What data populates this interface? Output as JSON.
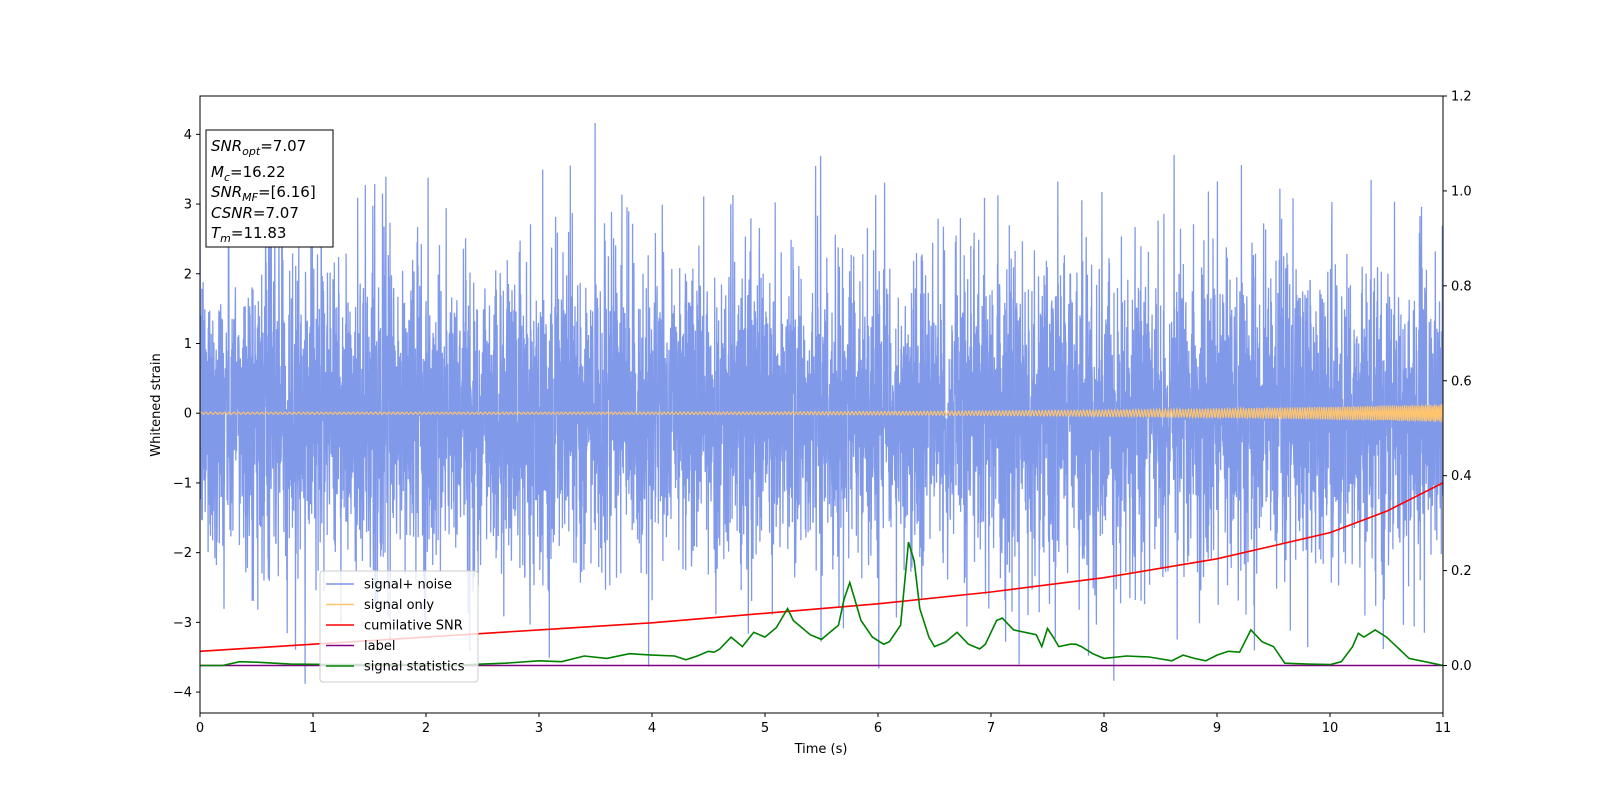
{
  "chart_data": {
    "type": "line",
    "xlabel": "Time (s)",
    "ylabel": "Whitened strain",
    "xlim": [
      0,
      11
    ],
    "ylim": [
      -4.3,
      4.55
    ],
    "y2lim": [
      -0.1,
      1.2
    ],
    "x_ticks": [
      "0",
      "1",
      "2",
      "3",
      "4",
      "5",
      "6",
      "7",
      "8",
      "9",
      "10",
      "11"
    ],
    "y_ticks": [
      "4",
      "3",
      "2",
      "1",
      "0",
      "−1",
      "−2",
      "−3",
      "−4"
    ],
    "y2_ticks": [
      "1.2",
      "1.0",
      "0.8",
      "0.6",
      "0.4",
      "0.2",
      "0.0"
    ],
    "grid": false,
    "legend_position": "lower-left",
    "legend": [
      {
        "label": "signal+ noise",
        "color": "#7a94e8"
      },
      {
        "label": "signal only",
        "color": "#ffc56e"
      },
      {
        "label": "cumilative SNR",
        "color": "#ff0000"
      },
      {
        "label": "label",
        "color": "#800080"
      },
      {
        "label": "signal statistics",
        "color": "#008000"
      }
    ],
    "info_box": {
      "snr_opt_base": "SNR",
      "snr_opt_sub": "opt",
      "snr_opt_value": "=7.07",
      "mc_base": "M",
      "mc_sub": "c",
      "mc_value": "=16.22",
      "snr_mf_base": "SNR",
      "snr_mf_sub": "MF",
      "snr_mf_value": "=[6.16]",
      "csnr_base": "CSNR",
      "csnr_value": "=7.07",
      "tm_base": "T",
      "tm_sub": "m",
      "tm_value": "=11.83"
    },
    "series": [
      {
        "name": "signal+ noise",
        "axis": "left",
        "style": "gaussian-noise",
        "color": "#7a94e8",
        "typical_range": [
          -2.4,
          2.4
        ],
        "peak_max": 4.17,
        "peak_min": -3.88
      },
      {
        "name": "signal only",
        "axis": "left",
        "style": "chirp",
        "color": "#ffc56e",
        "amplitude_start": 0.015,
        "amplitude_end": 0.13
      },
      {
        "name": "cumilative SNR",
        "axis": "right",
        "color": "#ff0000",
        "x": [
          0,
          1,
          2,
          3,
          4,
          5,
          6,
          7,
          8,
          9,
          10,
          10.5,
          11
        ],
        "y": [
          0.03,
          0.045,
          0.06,
          0.075,
          0.09,
          0.11,
          0.13,
          0.155,
          0.185,
          0.225,
          0.28,
          0.325,
          0.385
        ]
      },
      {
        "name": "label",
        "axis": "right",
        "color": "#800080",
        "x": [
          0,
          11
        ],
        "y": [
          0.0,
          0.0
        ]
      },
      {
        "name": "signal statistics",
        "axis": "right",
        "color": "#008000",
        "x": [
          0,
          0.2,
          0.35,
          0.5,
          0.8,
          1.2,
          1.8,
          2.3,
          2.5,
          2.7,
          3.0,
          3.2,
          3.4,
          3.6,
          3.8,
          4.0,
          4.2,
          4.3,
          4.4,
          4.5,
          4.55,
          4.6,
          4.7,
          4.8,
          4.9,
          5.0,
          5.1,
          5.2,
          5.25,
          5.4,
          5.5,
          5.6,
          5.65,
          5.7,
          5.75,
          5.85,
          5.95,
          6.05,
          6.1,
          6.2,
          6.27,
          6.32,
          6.37,
          6.45,
          6.5,
          6.6,
          6.7,
          6.8,
          6.9,
          6.95,
          7.05,
          7.1,
          7.2,
          7.3,
          7.4,
          7.45,
          7.5,
          7.55,
          7.6,
          7.7,
          7.75,
          7.8,
          7.9,
          8.0,
          8.2,
          8.4,
          8.6,
          8.7,
          8.8,
          8.9,
          9.0,
          9.1,
          9.2,
          9.3,
          9.4,
          9.5,
          9.6,
          9.8,
          10.0,
          10.05,
          10.1,
          10.2,
          10.25,
          10.3,
          10.4,
          10.5,
          10.7,
          11.0
        ],
        "y": [
          0.0,
          0.0,
          0.008,
          0.007,
          0.003,
          0.002,
          0.002,
          0.001,
          0.003,
          0.005,
          0.01,
          0.008,
          0.02,
          0.015,
          0.025,
          0.022,
          0.02,
          0.012,
          0.02,
          0.03,
          0.028,
          0.035,
          0.06,
          0.04,
          0.07,
          0.06,
          0.08,
          0.12,
          0.095,
          0.065,
          0.055,
          0.075,
          0.085,
          0.14,
          0.175,
          0.095,
          0.06,
          0.045,
          0.05,
          0.085,
          0.26,
          0.22,
          0.12,
          0.06,
          0.04,
          0.05,
          0.07,
          0.045,
          0.035,
          0.045,
          0.095,
          0.1,
          0.075,
          0.07,
          0.065,
          0.04,
          0.078,
          0.06,
          0.04,
          0.045,
          0.045,
          0.04,
          0.025,
          0.015,
          0.02,
          0.018,
          0.01,
          0.022,
          0.015,
          0.01,
          0.022,
          0.03,
          0.028,
          0.075,
          0.05,
          0.04,
          0.005,
          0.003,
          0.002,
          0.005,
          0.008,
          0.04,
          0.068,
          0.06,
          0.075,
          0.06,
          0.015,
          0.0
        ]
      }
    ]
  }
}
